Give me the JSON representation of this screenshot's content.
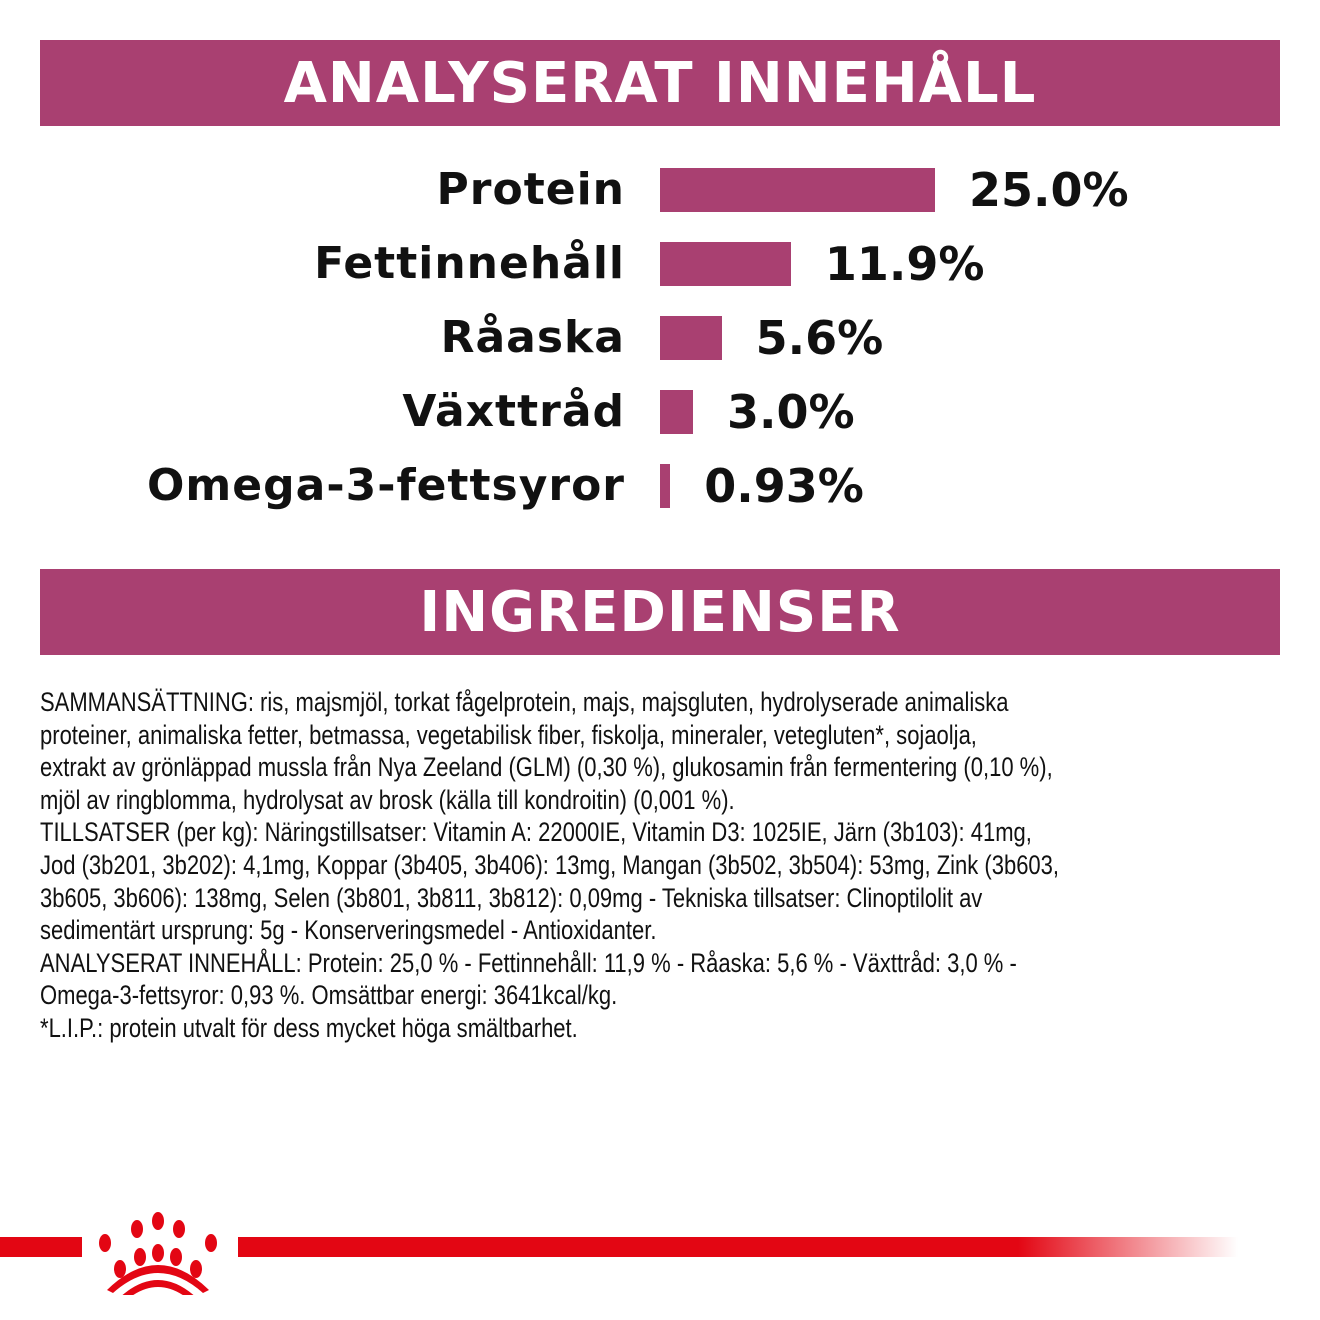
{
  "headers": {
    "analysis": "ANALYSERAT INNEHÅLL",
    "ingredients": "INGREDIENSER"
  },
  "chart_data": {
    "type": "bar",
    "orientation": "horizontal",
    "categories": [
      "Protein",
      "Fettinnehåll",
      "Råaska",
      "Växttråd",
      "Omega-3-fettsyror"
    ],
    "values": [
      25.0,
      11.9,
      5.6,
      3.0,
      0.93
    ],
    "value_labels": [
      "25.0%",
      "11.9%",
      "5.6%",
      "3.0%",
      "0.93%"
    ],
    "unit": "%",
    "bar_color": "#a94071",
    "grid": false
  },
  "ingredients_lines": [
    "SAMMANSÄTTNING: ris, majsmjöl, torkat fågelprotein, majs, majsgluten, hydrolyserade animaliska",
    "proteiner, animaliska fetter, betmassa, vegetabilisk fiber, fiskolja, mineraler, vetegluten*, sojaolja,",
    "extrakt av grönläppad mussla från Nya Zeeland (GLM) (0,30 %), glukosamin från fermentering (0,10 %),",
    "mjöl av ringblomma, hydrolysat av brosk (källa till kondroitin) (0,001 %).",
    "TILLSATSER (per kg): Näringstillsatser: Vitamin A: 22000IE, Vitamin D3: 1025IE, Järn (3b103): 41mg,",
    "Jod (3b201, 3b202): 4,1mg, Koppar (3b405, 3b406): 13mg, Mangan (3b502, 3b504): 53mg, Zink (3b603,",
    "3b605, 3b606): 138mg, Selen (3b801, 3b811, 3b812): 0,09mg - Tekniska tillsatser: Clinoptilolit av",
    "sedimentärt ursprung: 5g - Konserveringsmedel - Antioxidanter.",
    "ANALYSERAT INNEHÅLL: Protein: 25,0 % - Fettinnehåll: 11,9 % - Råaska: 5,6 % - Växttråd: 3,0 % -",
    "Omega-3-fettsyror: 0,93 %. Omsättbar energi: 3641kcal/kg.",
    "*L.I.P.: protein utvalt för dess mycket höga smältbarhet."
  ],
  "colors": {
    "accent": "#a94071",
    "brand_red": "#e30613"
  },
  "logo": {
    "icon": "crown-logo-icon"
  }
}
